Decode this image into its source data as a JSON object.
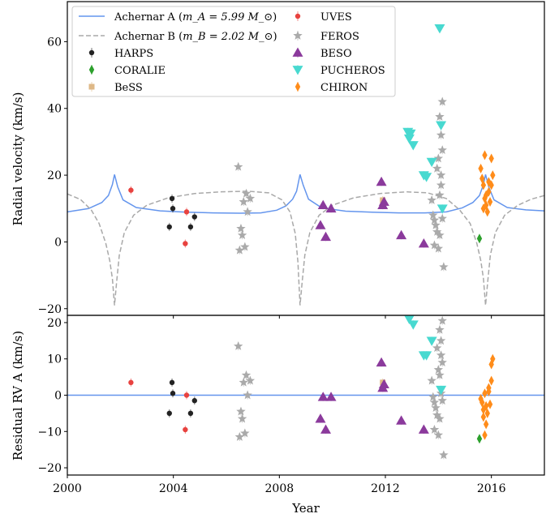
{
  "chart_data": {
    "type": "scatter",
    "xlabel": "Year",
    "xlim": [
      2000,
      2018
    ],
    "xticks": [
      2000,
      2004,
      2008,
      2012,
      2016
    ],
    "panels": [
      {
        "id": "rv",
        "ylabel": "Radial velocity (km/s)",
        "ylim": [
          -22,
          72
        ],
        "yticks": [
          -20,
          0,
          20,
          40,
          60
        ],
        "ytick_labels": [
          "−20",
          "0",
          "20",
          "40",
          "60"
        ],
        "curves": [
          {
            "name": "Achernar A (m_A = 5.99 M_⊙)",
            "color": "#6495ed",
            "style": "solid",
            "x": [
              2000.0,
              2000.8,
              2001.3,
              2001.55,
              2001.7,
              2001.78,
              2001.9,
              2002.1,
              2002.6,
              2003.5,
              2004.5,
              2005.5,
              2006.5,
              2007.3,
              2007.9,
              2008.25,
              2008.5,
              2008.65,
              2008.78,
              2008.9,
              2009.1,
              2009.6,
              2010.5,
              2011.5,
              2012.5,
              2013.5,
              2014.3,
              2014.9,
              2015.3,
              2015.55,
              2015.7,
              2015.78,
              2015.9,
              2016.1,
              2016.6,
              2017.3,
              2018.0
            ],
            "y": [
              9.0,
              10.0,
              11.8,
              13.9,
              17.2,
              20.2,
              16.5,
              12.6,
              10.3,
              9.3,
              8.9,
              8.7,
              8.6,
              8.7,
              9.5,
              10.8,
              12.8,
              15.2,
              20.2,
              17.0,
              12.8,
              10.2,
              9.2,
              8.9,
              8.7,
              8.7,
              9.0,
              10.2,
              11.8,
              13.9,
              17.2,
              20.2,
              16.5,
              12.6,
              10.3,
              9.6,
              9.3
            ]
          },
          {
            "name": "Achernar B (m_B = 2.02 M_⊙)",
            "color": "#a9a9a9",
            "style": "dashed",
            "x": [
              2000.0,
              2000.5,
              2000.9,
              2001.2,
              2001.45,
              2001.6,
              2001.7,
              2001.78,
              2001.86,
              2001.96,
              2002.15,
              2002.5,
              2003.0,
              2003.8,
              2004.8,
              2005.8,
              2006.8,
              2007.6,
              2008.1,
              2008.4,
              2008.6,
              2008.7,
              2008.78,
              2008.86,
              2008.96,
              2009.15,
              2009.5,
              2010.0,
              2010.8,
              2011.8,
              2012.8,
              2013.6,
              2014.3,
              2014.8,
              2015.2,
              2015.45,
              2015.6,
              2015.7,
              2015.78,
              2015.86,
              2015.96,
              2016.15,
              2016.5,
              2017.0,
              2017.5,
              2018.0
            ],
            "y": [
              14.4,
              12.7,
              9.6,
              5.5,
              -0.4,
              -5.6,
              -11.0,
              -19.0,
              -12.0,
              -4.0,
              2.8,
              8.0,
              11.0,
              13.2,
              14.5,
              15.0,
              15.2,
              14.7,
              12.6,
              9.0,
              2.5,
              -6.0,
              -19.0,
              -12.0,
              -4.0,
              2.8,
              8.0,
              11.0,
              13.2,
              14.5,
              15.0,
              14.7,
              13.0,
              9.6,
              5.5,
              -0.4,
              -5.6,
              -11.0,
              -19.0,
              -12.0,
              -4.0,
              2.8,
              8.0,
              11.0,
              12.8,
              13.9
            ]
          }
        ],
        "series": [
          {
            "name": "HARPS",
            "marker": "circle",
            "color": "#222222",
            "x": [
              2003.85,
              2003.95,
              2003.98,
              2004.65,
              2004.8
            ],
            "y": [
              4.5,
              13.0,
              10.0,
              4.5,
              7.5
            ]
          },
          {
            "name": "CORALIE",
            "marker": "diamond",
            "color": "#2ca02c",
            "x": [
              2015.55
            ],
            "y": [
              1.0
            ]
          },
          {
            "name": "BeSS",
            "marker": "square",
            "color": "#deb887",
            "x": [
              2011.9
            ],
            "y": [
              12.5
            ]
          },
          {
            "name": "UVES",
            "marker": "circle",
            "color": "#e8423f",
            "x": [
              2002.4,
              2004.5,
              2004.45
            ],
            "y": [
              15.5,
              9.0,
              -0.5
            ]
          },
          {
            "name": "FEROS",
            "marker": "star",
            "color": "#aaaaaa",
            "x": [
              2006.45,
              2006.5,
              2006.55,
              2006.6,
              2006.65,
              2006.7,
              2006.75,
              2006.8,
              2006.9,
              2013.75,
              2013.8,
              2013.85,
              2013.9,
              2013.95,
              2014.0,
              2014.05,
              2014.1,
              2014.15,
              2014.2,
              2014.05,
              2014.1,
              2014.15,
              2014.0,
              2014.1,
              2013.85,
              2014.15,
              2014.05,
              2013.95
            ],
            "y": [
              22.5,
              -2.5,
              4.0,
              2.0,
              12.0,
              -1.5,
              14.5,
              9.0,
              13.0,
              12.5,
              8.0,
              6.5,
              5.0,
              3.0,
              -2.0,
              14.0,
              20.0,
              42.0,
              -7.5,
              37.5,
              32.0,
              27.5,
              25.0,
              17.0,
              -1.0,
              7.0,
              2.0,
              22.0
            ]
          },
          {
            "name": "BESO",
            "marker": "triangle-up",
            "color": "#8b3a9c",
            "x": [
              2009.55,
              2009.65,
              2009.75,
              2009.95,
              2011.85,
              2011.9,
              2011.95,
              2012.6,
              2013.45
            ],
            "y": [
              5.0,
              11.0,
              1.5,
              10.0,
              18.0,
              11.0,
              12.0,
              2.0,
              -0.5
            ]
          },
          {
            "name": "PUCHEROS",
            "marker": "triangle-down",
            "color": "#48d9d0",
            "x": [
              2012.85,
              2012.9,
              2012.95,
              2013.05,
              2013.45,
              2013.55,
              2013.75,
              2014.05,
              2014.1,
              2014.15
            ],
            "y": [
              33.0,
              31.0,
              32.5,
              29.0,
              20.0,
              19.5,
              24.0,
              64.0,
              35.0,
              10.0
            ]
          },
          {
            "name": "CHIRON",
            "marker": "diamond",
            "color": "#ff8c1a",
            "x": [
              2015.6,
              2015.65,
              2015.7,
              2015.75,
              2015.8,
              2015.85,
              2015.9,
              2015.95,
              2016.0,
              2016.05,
              2015.7,
              2015.8,
              2015.9,
              2016.0,
              2015.75
            ],
            "y": [
              22.0,
              19.0,
              17.0,
              13.0,
              11.0,
              9.0,
              15.0,
              12.0,
              17.0,
              20.0,
              10.0,
              14.0,
              18.0,
              25.0,
              26.0
            ]
          }
        ]
      },
      {
        "id": "resid",
        "ylabel": "Residual RV A (km/s)",
        "ylim": [
          -22,
          22
        ],
        "yticks": [
          -20,
          -10,
          0,
          10,
          20
        ],
        "ytick_labels": [
          "−20",
          "−10",
          "0",
          "10",
          "20"
        ],
        "hline": {
          "y": 0,
          "color": "#6495ed"
        },
        "series": [
          {
            "name": "HARPS",
            "marker": "circle",
            "color": "#222222",
            "x": [
              2003.85,
              2003.95,
              2003.98,
              2004.65,
              2004.8
            ],
            "y": [
              -5.0,
              3.5,
              0.5,
              -5.0,
              -1.5
            ]
          },
          {
            "name": "CORALIE",
            "marker": "diamond",
            "color": "#2ca02c",
            "x": [
              2015.55
            ],
            "y": [
              -12.0
            ]
          },
          {
            "name": "BeSS",
            "marker": "square",
            "color": "#deb887",
            "x": [
              2011.9
            ],
            "y": [
              3.5
            ]
          },
          {
            "name": "UVES",
            "marker": "circle",
            "color": "#e8423f",
            "x": [
              2002.4,
              2004.5,
              2004.45
            ],
            "y": [
              3.5,
              0.0,
              -9.5
            ]
          },
          {
            "name": "FEROS",
            "marker": "star",
            "color": "#aaaaaa",
            "x": [
              2006.45,
              2006.5,
              2006.55,
              2006.6,
              2006.65,
              2006.7,
              2006.75,
              2006.8,
              2006.9,
              2013.75,
              2013.8,
              2013.85,
              2013.9,
              2013.95,
              2014.0,
              2014.05,
              2014.1,
              2014.15,
              2014.2,
              2014.05,
              2014.1,
              2014.15,
              2014.0,
              2014.1,
              2013.85,
              2014.15,
              2014.05,
              2013.95
            ],
            "y": [
              13.5,
              -11.5,
              -4.5,
              -6.5,
              3.5,
              -10.5,
              5.5,
              0.0,
              4.0,
              4.0,
              -0.5,
              -2.0,
              -3.5,
              -5.5,
              -11.0,
              5.5,
              11.0,
              20.5,
              -16.5,
              18.0,
              15.0,
              9.0,
              7.0,
              0.5,
              -9.5,
              -1.5,
              -6.5,
              13.0
            ]
          },
          {
            "name": "BESO",
            "marker": "triangle-up",
            "color": "#8b3a9c",
            "x": [
              2009.55,
              2009.65,
              2009.75,
              2009.95,
              2011.85,
              2011.9,
              2011.95,
              2012.6,
              2013.45
            ],
            "y": [
              -6.5,
              -0.5,
              -9.5,
              -0.5,
              9.0,
              2.0,
              3.0,
              -7.0,
              -9.5
            ]
          },
          {
            "name": "PUCHEROS",
            "marker": "triangle-down",
            "color": "#48d9d0",
            "x": [
              2012.9,
              2013.05,
              2013.45,
              2013.55,
              2013.75,
              2014.1
            ],
            "y": [
              21.0,
              19.5,
              11.0,
              11.0,
              15.0,
              1.5
            ]
          },
          {
            "name": "CHIRON",
            "marker": "diamond",
            "color": "#ff8c1a",
            "x": [
              2015.6,
              2015.65,
              2015.7,
              2015.75,
              2015.8,
              2015.85,
              2015.9,
              2015.95,
              2016.0,
              2016.05,
              2015.7,
              2015.8,
              2015.9,
              2016.0,
              2015.75
            ],
            "y": [
              -1.0,
              -2.0,
              -4.0,
              -11.0,
              -8.0,
              -5.0,
              2.0,
              -2.5,
              4.0,
              10.0,
              -6.0,
              -3.0,
              1.0,
              8.5,
              0.5
            ]
          }
        ]
      }
    ],
    "legend": {
      "placement": "top-left",
      "entries": [
        {
          "label_main": "Achernar A (",
          "math": "m_A = 5.99 M_⊙",
          "label_end": ")",
          "kind": "line",
          "style": "solid",
          "color": "#6495ed"
        },
        {
          "label_main": "Achernar B (",
          "math": "m_B = 2.02 M_⊙",
          "label_end": ")",
          "kind": "line",
          "style": "dashed",
          "color": "#a9a9a9"
        },
        {
          "label_main": "HARPS",
          "kind": "marker",
          "marker": "circle",
          "color": "#222222"
        },
        {
          "label_main": "CORALIE",
          "kind": "marker",
          "marker": "diamond",
          "color": "#2ca02c"
        },
        {
          "label_main": "BeSS",
          "kind": "marker",
          "marker": "square",
          "color": "#deb887"
        },
        {
          "label_main": "UVES",
          "kind": "marker",
          "marker": "circle",
          "color": "#e8423f"
        },
        {
          "label_main": "FEROS",
          "kind": "marker",
          "marker": "star",
          "color": "#aaaaaa"
        },
        {
          "label_main": "BESO",
          "kind": "marker",
          "marker": "triangle-up",
          "color": "#8b3a9c"
        },
        {
          "label_main": "PUCHEROS",
          "kind": "marker",
          "marker": "triangle-down",
          "color": "#48d9d0"
        },
        {
          "label_main": "CHIRON",
          "kind": "marker",
          "marker": "diamond",
          "color": "#ff8c1a"
        }
      ]
    }
  }
}
